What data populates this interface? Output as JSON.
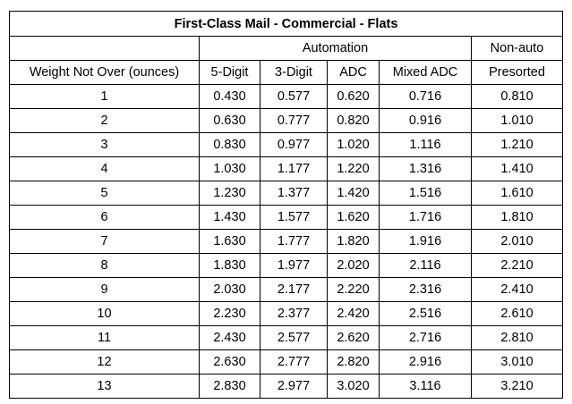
{
  "table": {
    "title": "First-Class Mail - Commercial - Flats",
    "group_headers": {
      "automation": "Automation",
      "non_auto": "Non-auto"
    },
    "columns": [
      "Weight Not Over (ounces)",
      "5-Digit",
      "3-Digit",
      "ADC",
      "Mixed ADC",
      "Presorted"
    ],
    "rows": [
      [
        "1",
        "0.430",
        "0.577",
        "0.620",
        "0.716",
        "0.810"
      ],
      [
        "2",
        "0.630",
        "0.777",
        "0.820",
        "0.916",
        "1.010"
      ],
      [
        "3",
        "0.830",
        "0.977",
        "1.020",
        "1.116",
        "1.210"
      ],
      [
        "4",
        "1.030",
        "1.177",
        "1.220",
        "1.316",
        "1.410"
      ],
      [
        "5",
        "1.230",
        "1.377",
        "1.420",
        "1.516",
        "1.610"
      ],
      [
        "6",
        "1.430",
        "1.577",
        "1.620",
        "1.716",
        "1.810"
      ],
      [
        "7",
        "1.630",
        "1.777",
        "1.820",
        "1.916",
        "2.010"
      ],
      [
        "8",
        "1.830",
        "1.977",
        "2.020",
        "2.116",
        "2.210"
      ],
      [
        "9",
        "2.030",
        "2.177",
        "2.220",
        "2.316",
        "2.410"
      ],
      [
        "10",
        "2.230",
        "2.377",
        "2.420",
        "2.516",
        "2.610"
      ],
      [
        "11",
        "2.430",
        "2.577",
        "2.620",
        "2.716",
        "2.810"
      ],
      [
        "12",
        "2.630",
        "2.777",
        "2.820",
        "2.916",
        "3.010"
      ],
      [
        "13",
        "2.830",
        "2.977",
        "3.020",
        "3.116",
        "3.210"
      ]
    ]
  }
}
